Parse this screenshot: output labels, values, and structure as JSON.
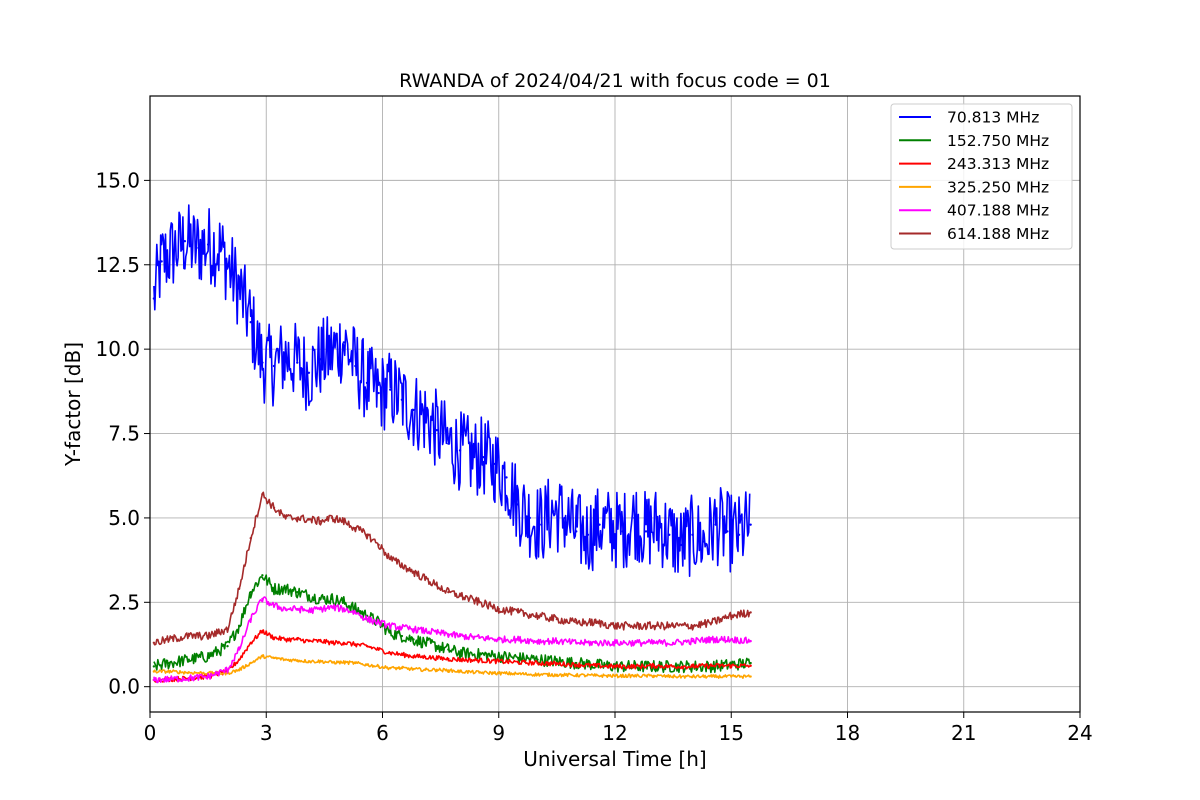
{
  "chart_data": {
    "type": "line",
    "title": "RWANDA of 2024/04/21 with focus code = 01",
    "xlabel": "Universal Time [h]",
    "ylabel": "Y-factor [dB]",
    "xlim": [
      0,
      24
    ],
    "ylim": [
      -0.75,
      17.5
    ],
    "xticks": [
      0,
      3,
      6,
      9,
      12,
      15,
      18,
      21,
      24
    ],
    "xtick_labels": [
      "0",
      "3",
      "6",
      "9",
      "12",
      "15",
      "18",
      "21",
      "24"
    ],
    "yticks": [
      0.0,
      2.5,
      5.0,
      7.5,
      10.0,
      12.5,
      15.0
    ],
    "ytick_labels": [
      "0.0",
      "2.5",
      "5.0",
      "7.5",
      "10.0",
      "12.5",
      "15.0"
    ],
    "grid": true,
    "legend_position": "top-right",
    "series": [
      {
        "name": " 70.813 MHz",
        "color": "#0000ff",
        "noise": 1.2,
        "x": [
          0.1,
          0.3,
          0.6,
          0.9,
          1.2,
          1.5,
          1.8,
          2.0,
          2.3,
          2.6,
          2.9,
          3.2,
          3.5,
          3.8,
          4.1,
          4.4,
          4.7,
          5.0,
          5.3,
          5.6,
          5.9,
          6.2,
          6.5,
          6.8,
          7.1,
          7.4,
          7.7,
          8.0,
          8.3,
          8.6,
          8.9,
          9.2,
          9.5,
          9.8,
          10.1,
          10.4,
          10.7,
          11.0,
          11.3,
          11.6,
          11.9,
          12.2,
          12.5,
          12.8,
          13.1,
          13.4,
          13.7,
          14.0,
          14.3,
          14.6,
          14.9,
          15.2,
          15.5
        ],
        "values": [
          11.5,
          12.6,
          12.9,
          13.2,
          13.0,
          13.1,
          13.0,
          12.5,
          11.8,
          10.8,
          9.6,
          9.5,
          9.8,
          9.6,
          9.3,
          9.7,
          9.9,
          10.2,
          9.5,
          9.0,
          8.7,
          8.8,
          8.5,
          8.2,
          8.0,
          7.6,
          7.2,
          7.0,
          6.8,
          6.8,
          6.6,
          6.2,
          5.4,
          5.0,
          4.8,
          5.2,
          5.0,
          4.6,
          4.5,
          4.8,
          4.7,
          4.6,
          5.0,
          4.6,
          4.8,
          4.5,
          4.2,
          4.5,
          4.3,
          4.8,
          4.6,
          4.5,
          4.8
        ]
      },
      {
        "name": "152.750 MHz",
        "color": "#008000",
        "noise": 0.18,
        "x": [
          0.1,
          0.5,
          1.0,
          1.5,
          2.0,
          2.3,
          2.6,
          2.9,
          3.2,
          3.5,
          3.8,
          4.1,
          4.4,
          4.7,
          5.0,
          5.3,
          5.6,
          5.9,
          6.2,
          6.5,
          6.8,
          7.1,
          7.4,
          7.7,
          8.0,
          8.5,
          9.0,
          9.5,
          10.0,
          10.5,
          11.0,
          11.5,
          12.0,
          12.5,
          13.0,
          13.5,
          14.0,
          14.5,
          15.0,
          15.5
        ],
        "values": [
          0.6,
          0.7,
          0.8,
          0.9,
          1.2,
          1.8,
          2.8,
          3.3,
          2.9,
          2.9,
          2.8,
          2.7,
          2.6,
          2.6,
          2.5,
          2.3,
          2.1,
          1.9,
          1.6,
          1.5,
          1.4,
          1.3,
          1.2,
          1.1,
          1.0,
          0.95,
          0.9,
          0.85,
          0.8,
          0.75,
          0.7,
          0.65,
          0.6,
          0.6,
          0.6,
          0.6,
          0.6,
          0.6,
          0.65,
          0.7
        ]
      },
      {
        "name": "243.313 MHz",
        "color": "#ff0000",
        "noise": 0.07,
        "x": [
          0.1,
          0.5,
          1.0,
          1.5,
          2.0,
          2.3,
          2.6,
          2.9,
          3.2,
          3.5,
          3.8,
          4.1,
          4.4,
          4.7,
          5.0,
          5.3,
          5.6,
          5.9,
          6.2,
          6.5,
          6.8,
          7.1,
          7.4,
          7.7,
          8.0,
          8.5,
          9.0,
          9.5,
          10.0,
          10.5,
          11.0,
          11.5,
          12.0,
          12.5,
          13.0,
          13.5,
          14.0,
          14.5,
          15.0,
          15.5
        ],
        "values": [
          0.2,
          0.22,
          0.25,
          0.3,
          0.45,
          0.8,
          1.3,
          1.65,
          1.45,
          1.4,
          1.4,
          1.35,
          1.35,
          1.3,
          1.3,
          1.25,
          1.2,
          1.1,
          1.0,
          0.95,
          0.9,
          0.88,
          0.85,
          0.82,
          0.8,
          0.78,
          0.75,
          0.72,
          0.7,
          0.68,
          0.65,
          0.62,
          0.6,
          0.6,
          0.62,
          0.6,
          0.6,
          0.62,
          0.62,
          0.62
        ]
      },
      {
        "name": "325.250 MHz",
        "color": "#ffa500",
        "noise": 0.05,
        "x": [
          0.1,
          0.5,
          1.0,
          1.5,
          2.0,
          2.3,
          2.6,
          2.9,
          3.2,
          3.5,
          3.8,
          4.1,
          4.4,
          4.7,
          5.0,
          5.3,
          5.6,
          5.9,
          6.2,
          6.5,
          6.8,
          7.1,
          7.4,
          7.7,
          8.0,
          8.5,
          9.0,
          9.5,
          10.0,
          10.5,
          11.0,
          11.5,
          12.0,
          12.5,
          13.0,
          13.5,
          14.0,
          14.5,
          15.0,
          15.5
        ],
        "values": [
          0.45,
          0.45,
          0.42,
          0.4,
          0.4,
          0.5,
          0.7,
          0.9,
          0.85,
          0.8,
          0.78,
          0.75,
          0.75,
          0.72,
          0.72,
          0.7,
          0.65,
          0.6,
          0.55,
          0.55,
          0.52,
          0.5,
          0.5,
          0.48,
          0.45,
          0.42,
          0.4,
          0.38,
          0.36,
          0.35,
          0.34,
          0.33,
          0.32,
          0.32,
          0.32,
          0.3,
          0.3,
          0.3,
          0.3,
          0.3
        ]
      },
      {
        "name": "407.188 MHz",
        "color": "#ff00ff",
        "noise": 0.1,
        "x": [
          0.1,
          0.5,
          1.0,
          1.5,
          2.0,
          2.3,
          2.6,
          2.9,
          3.2,
          3.5,
          3.8,
          4.1,
          4.4,
          4.7,
          5.0,
          5.3,
          5.6,
          5.9,
          6.2,
          6.5,
          6.8,
          7.1,
          7.4,
          7.7,
          8.0,
          8.5,
          9.0,
          9.5,
          10.0,
          10.5,
          11.0,
          11.5,
          12.0,
          12.5,
          13.0,
          13.5,
          14.0,
          14.5,
          15.0,
          15.5
        ],
        "values": [
          0.2,
          0.22,
          0.25,
          0.3,
          0.5,
          1.1,
          2.0,
          2.6,
          2.4,
          2.3,
          2.3,
          2.25,
          2.3,
          2.35,
          2.3,
          2.2,
          2.0,
          1.9,
          1.8,
          1.75,
          1.7,
          1.65,
          1.6,
          1.55,
          1.5,
          1.45,
          1.4,
          1.4,
          1.35,
          1.35,
          1.3,
          1.3,
          1.3,
          1.3,
          1.3,
          1.3,
          1.35,
          1.4,
          1.4,
          1.35
        ]
      },
      {
        "name": "614.188 MHz",
        "color": "#a52a2a",
        "noise": 0.12,
        "x": [
          0.1,
          0.5,
          1.0,
          1.5,
          2.0,
          2.3,
          2.6,
          2.9,
          3.2,
          3.5,
          3.8,
          4.1,
          4.4,
          4.7,
          5.0,
          5.3,
          5.6,
          5.9,
          6.2,
          6.5,
          6.8,
          7.1,
          7.4,
          7.7,
          8.0,
          8.5,
          9.0,
          9.5,
          10.0,
          10.5,
          11.0,
          11.5,
          12.0,
          12.5,
          13.0,
          13.5,
          14.0,
          14.5,
          15.0,
          15.5
        ],
        "values": [
          1.3,
          1.4,
          1.5,
          1.5,
          1.7,
          2.9,
          4.4,
          5.7,
          5.3,
          5.0,
          5.0,
          4.95,
          4.9,
          5.0,
          4.9,
          4.7,
          4.5,
          4.2,
          3.8,
          3.6,
          3.4,
          3.2,
          3.0,
          2.8,
          2.7,
          2.5,
          2.3,
          2.2,
          2.1,
          2.0,
          1.9,
          1.9,
          1.8,
          1.8,
          1.8,
          1.8,
          1.8,
          1.9,
          2.1,
          2.2
        ]
      }
    ]
  }
}
